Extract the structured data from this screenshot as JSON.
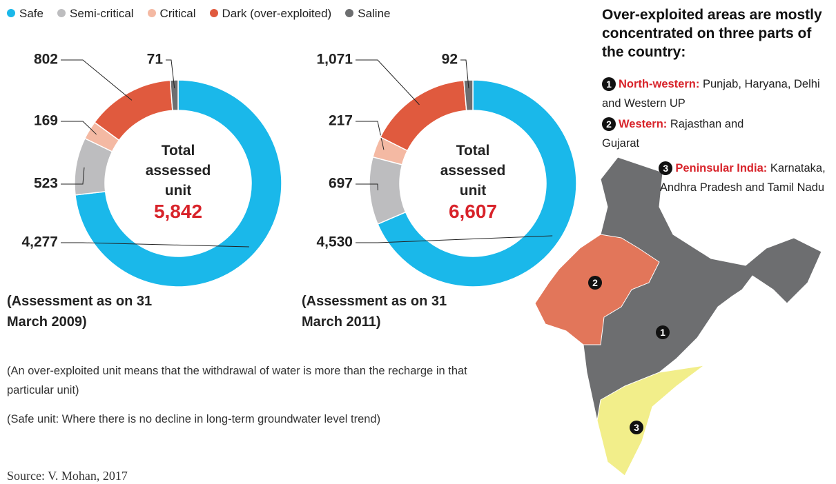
{
  "chart_data": [
    {
      "type": "donut",
      "categories": [
        "Safe",
        "Semi-critical",
        "Critical",
        "Dark (over-exploited)",
        "Saline"
      ],
      "colors": [
        "#1ab8ea",
        "#bdbdbf",
        "#f4b9a3",
        "#e05a3e",
        "#6d6e70"
      ],
      "values": [
        4277,
        523,
        169,
        802,
        71
      ],
      "value_labels": [
        "4,277",
        "523",
        "169",
        "802",
        "71"
      ],
      "center_label": "Total assessed unit",
      "total": {
        "value": 5842,
        "label": "5,842"
      },
      "caption": "(Assessment as on 31 March 2009)"
    },
    {
      "type": "donut",
      "categories": [
        "Safe",
        "Semi-critical",
        "Critical",
        "Dark (over-exploited)",
        "Saline"
      ],
      "colors": [
        "#1ab8ea",
        "#bdbdbf",
        "#f4b9a3",
        "#e05a3e",
        "#6d6e70"
      ],
      "values": [
        4530,
        697,
        217,
        1071,
        92
      ],
      "value_labels": [
        "4,530",
        "697",
        "217",
        "1,071",
        "92"
      ],
      "center_label": "Total assessed unit",
      "total": {
        "value": 6607,
        "label": "6,607"
      },
      "caption": "(Assessment as on 31 March 2011)"
    }
  ],
  "notes": [
    "(An over-exploited unit means that the withdrawal of water is more than the recharge in that particular unit)",
    "(Safe unit: Where there is no decline in long-term groundwater level trend)"
  ],
  "source": "Source: V. Mohan, 2017",
  "map": {
    "title": "Over-exploited areas are mostly concentrated on three parts of the country:",
    "regions": [
      {
        "number": "1",
        "name": "North-western:",
        "states": "Punjab, Haryana, Delhi and Western UP"
      },
      {
        "number": "2",
        "name": "Western:",
        "states": "Rajasthan and Gujarat"
      },
      {
        "number": "3",
        "name": "Peninsular India:",
        "states": "Karnataka, Andhra Pradesh and Tamil Nadu"
      }
    ]
  }
}
